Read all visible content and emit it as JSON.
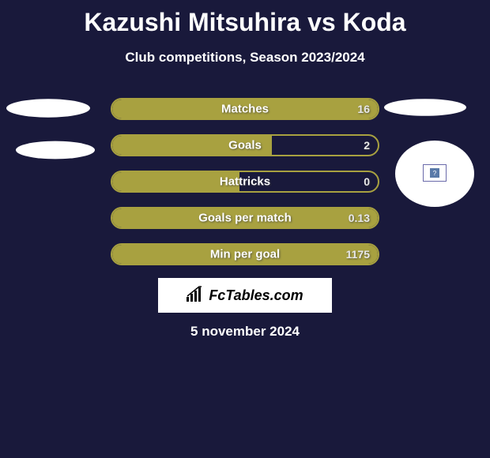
{
  "title": "Kazushi Mitsuhira vs Koda",
  "subtitle": "Club competitions, Season 2023/2024",
  "date": "5 november 2024",
  "logo_text": "FcTables.com",
  "background_color": "#19193b",
  "bar_border_color": "#a8a140",
  "bar_fill_color": "#a8a140",
  "text_color": "#ffffff",
  "bars": [
    {
      "label": "Matches",
      "value": "16",
      "fill_pct": 100
    },
    {
      "label": "Goals",
      "value": "2",
      "fill_pct": 60
    },
    {
      "label": "Hattricks",
      "value": "0",
      "fill_pct": 48
    },
    {
      "label": "Goals per match",
      "value": "0.13",
      "fill_pct": 100
    },
    {
      "label": "Min per goal",
      "value": "1175",
      "fill_pct": 100
    }
  ]
}
